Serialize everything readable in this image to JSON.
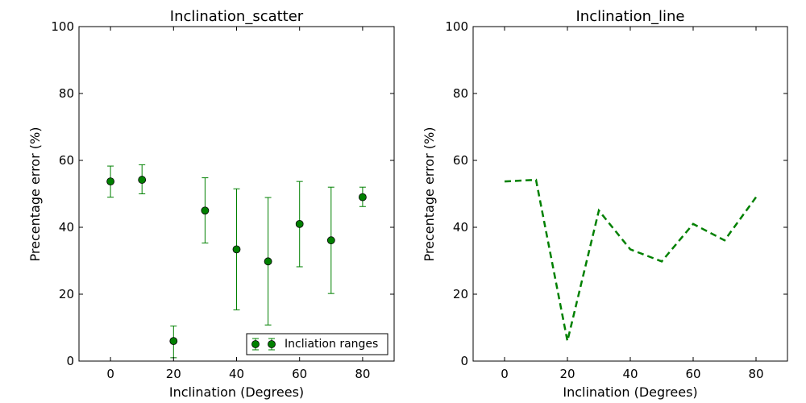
{
  "chart_data": [
    {
      "type": "scatter",
      "title": "Inclination_scatter",
      "xlabel": "Inclination (Degrees)",
      "ylabel": "Precentage error (%)",
      "xlim": [
        -10,
        90
      ],
      "ylim": [
        0,
        100
      ],
      "xticks": [
        0,
        20,
        40,
        60,
        80
      ],
      "yticks": [
        0,
        20,
        40,
        60,
        80,
        100
      ],
      "color": "#008000",
      "legend": {
        "label": "Incliation ranges",
        "placement": "lower-right"
      },
      "series": [
        {
          "name": "Incliation ranges",
          "x": [
            0,
            10,
            20,
            30,
            40,
            50,
            60,
            70,
            80
          ],
          "y": [
            53.7,
            54.2,
            6.0,
            45.0,
            33.4,
            29.8,
            41.0,
            36.1,
            49.0
          ],
          "yerr_low": [
            49.0,
            50.0,
            1.0,
            35.3,
            15.3,
            10.8,
            28.2,
            20.2,
            46.2
          ],
          "yerr_high": [
            58.3,
            58.7,
            10.5,
            54.8,
            51.5,
            48.9,
            53.7,
            52.0,
            52.0
          ]
        }
      ]
    },
    {
      "type": "line",
      "title": "Inclination_line",
      "xlabel": "Inclination (Degrees)",
      "ylabel": "Precentage error (%)",
      "xlim": [
        -10,
        90
      ],
      "ylim": [
        0,
        100
      ],
      "xticks": [
        0,
        20,
        40,
        60,
        80
      ],
      "yticks": [
        0,
        20,
        40,
        60,
        80,
        100
      ],
      "color": "#008000",
      "line_style": "dashed",
      "series": [
        {
          "x": [
            0,
            10,
            20,
            30,
            40,
            50,
            60,
            70,
            80
          ],
          "y": [
            53.7,
            54.2,
            6.0,
            45.0,
            33.4,
            29.8,
            41.0,
            36.1,
            49.0
          ]
        }
      ]
    }
  ]
}
